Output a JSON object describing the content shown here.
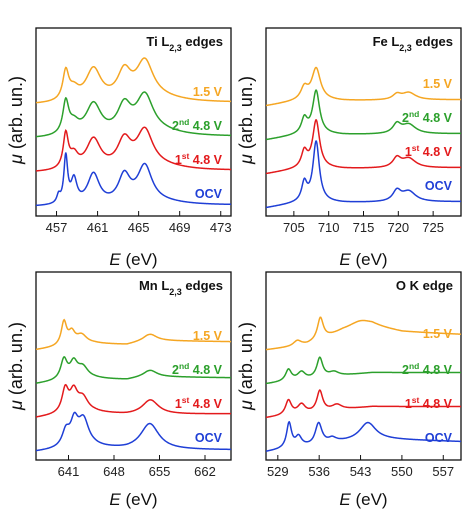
{
  "y_axis_label": "μ (arb. un.)",
  "charts": [
    {
      "type": "line",
      "title": "Ti L2,3 edges",
      "title_parts": {
        "base": "Ti L",
        "sub": "2,3",
        "rest": " edges"
      },
      "xlabel": "E (eV)",
      "xlim": [
        455,
        474
      ],
      "xticks": [
        "457",
        "461",
        "465",
        "469",
        "473"
      ],
      "series": [
        {
          "label": {
            "pre": "1.5 V",
            "sup": "",
            "post": ""
          },
          "color": "#f5a623",
          "offset": 3,
          "base": [
            [
              455,
              0.02
            ],
            [
              474,
              0.06
            ]
          ],
          "peaks": [
            [
              457.9,
              0.55,
              0.35
            ],
            [
              458.7,
              0.2,
              0.6
            ],
            [
              460.6,
              0.62,
              0.9
            ],
            [
              463.6,
              0.52,
              0.8
            ],
            [
              465.6,
              0.72,
              1.0
            ],
            [
              467,
              0.08,
              3
            ]
          ]
        },
        {
          "label": {
            "pre": "2",
            "sup": "nd",
            "post": " 4.8 V"
          },
          "color": "#2ca02c",
          "offset": 2,
          "base": [
            [
              455,
              0.02
            ],
            [
              474,
              0.06
            ]
          ],
          "peaks": [
            [
              457.9,
              0.62,
              0.35
            ],
            [
              458.7,
              0.2,
              0.6
            ],
            [
              460.6,
              0.6,
              0.9
            ],
            [
              463.6,
              0.52,
              0.8
            ],
            [
              465.6,
              0.72,
              1.0
            ],
            [
              467,
              0.08,
              3
            ]
          ]
        },
        {
          "label": {
            "pre": "1",
            "sup": "st",
            "post": " 4.8 V"
          },
          "color": "#e31a1c",
          "offset": 1,
          "base": [
            [
              455,
              0.02
            ],
            [
              474,
              0.06
            ]
          ],
          "peaks": [
            [
              457.9,
              0.66,
              0.3
            ],
            [
              458.7,
              0.25,
              0.5
            ],
            [
              460.6,
              0.58,
              0.85
            ],
            [
              463.6,
              0.52,
              0.8
            ],
            [
              465.6,
              0.7,
              0.95
            ],
            [
              467,
              0.08,
              3
            ]
          ]
        },
        {
          "label": {
            "pre": "OCV",
            "sup": "",
            "post": ""
          },
          "color": "#1f3fd6",
          "offset": 0,
          "base": [
            [
              455,
              0.02
            ],
            [
              474,
              0.05
            ]
          ],
          "peaks": [
            [
              457.2,
              0.15,
              0.2
            ],
            [
              457.9,
              0.9,
              0.22
            ],
            [
              458.7,
              0.45,
              0.35
            ],
            [
              460.6,
              0.58,
              0.7
            ],
            [
              463.6,
              0.52,
              0.7
            ],
            [
              465.6,
              0.7,
              0.85
            ],
            [
              467,
              0.06,
              3
            ]
          ]
        }
      ]
    },
    {
      "type": "line",
      "title": "Fe L2,3 edges",
      "title_parts": {
        "base": "Fe L",
        "sub": "2,3",
        "rest": " edges"
      },
      "xlabel": "E (eV)",
      "xlim": [
        701,
        729
      ],
      "xticks": [
        "705",
        "710",
        "715",
        "720",
        "725"
      ],
      "series": [
        {
          "label": {
            "pre": "1.5 V",
            "sup": "",
            "post": ""
          },
          "color": "#f5a623",
          "offset": 3,
          "base": [
            [
              701,
              0.0
            ],
            [
              707,
              0.12
            ],
            [
              712,
              0.1
            ],
            [
              729,
              0.12
            ]
          ],
          "peaks": [
            [
              706.5,
              0.22,
              0.6
            ],
            [
              708.2,
              0.6,
              0.75
            ],
            [
              719.8,
              0.1,
              0.7
            ],
            [
              721.5,
              0.14,
              1.2
            ]
          ]
        },
        {
          "label": {
            "pre": "2",
            "sup": "nd",
            "post": " 4.8 V"
          },
          "color": "#2ca02c",
          "offset": 2,
          "base": [
            [
              701,
              0.0
            ],
            [
              707,
              0.12
            ],
            [
              712,
              0.1
            ],
            [
              729,
              0.12
            ]
          ],
          "peaks": [
            [
              706.5,
              0.28,
              0.5
            ],
            [
              708.2,
              0.82,
              0.6
            ],
            [
              719.8,
              0.18,
              0.7
            ],
            [
              721.5,
              0.18,
              1.2
            ]
          ]
        },
        {
          "label": {
            "pre": "1",
            "sup": "st",
            "post": " 4.8 V"
          },
          "color": "#e31a1c",
          "offset": 1,
          "base": [
            [
              701,
              0.0
            ],
            [
              707,
              0.12
            ],
            [
              712,
              0.1
            ],
            [
              729,
              0.12
            ]
          ],
          "peaks": [
            [
              706.5,
              0.3,
              0.5
            ],
            [
              708.2,
              0.9,
              0.6
            ],
            [
              719.8,
              0.18,
              0.7
            ],
            [
              721.5,
              0.18,
              1.2
            ]
          ]
        },
        {
          "label": {
            "pre": "OCV",
            "sup": "",
            "post": ""
          },
          "color": "#1f3fd6",
          "offset": 0,
          "base": [
            [
              701,
              0.0
            ],
            [
              707,
              0.12
            ],
            [
              712,
              0.1
            ],
            [
              729,
              0.12
            ]
          ],
          "peaks": [
            [
              706.5,
              0.35,
              0.45
            ],
            [
              708.2,
              1.15,
              0.55
            ],
            [
              719.8,
              0.2,
              0.7
            ],
            [
              721.5,
              0.2,
              1.2
            ]
          ]
        }
      ]
    },
    {
      "type": "line",
      "title": "Mn L2,3 edges",
      "title_parts": {
        "base": "Mn L",
        "sub": "2,3",
        "rest": " edges"
      },
      "xlabel": "E (eV)",
      "xlim": [
        636,
        666
      ],
      "xticks": [
        "641",
        "648",
        "655",
        "662"
      ],
      "series": [
        {
          "label": {
            "pre": "1.5 V",
            "sup": "",
            "post": ""
          },
          "color": "#f5a623",
          "offset": 3,
          "base": [
            [
              636,
              0.0
            ],
            [
              640,
              0.06
            ],
            [
              645,
              0.12
            ],
            [
              650,
              0.1
            ],
            [
              653,
              0.18
            ],
            [
              666,
              0.16
            ]
          ],
          "peaks": [
            [
              640.3,
              0.45,
              0.5
            ],
            [
              641.5,
              0.22,
              0.6
            ],
            [
              643,
              0.18,
              1.0
            ],
            [
              653.6,
              0.12,
              1.2
            ]
          ]
        },
        {
          "label": {
            "pre": "2",
            "sup": "nd",
            "post": " 4.8 V"
          },
          "color": "#2ca02c",
          "offset": 2,
          "base": [
            [
              636,
              0.0
            ],
            [
              640,
              0.06
            ],
            [
              645,
              0.1
            ],
            [
              650,
              0.08
            ],
            [
              653,
              0.14
            ],
            [
              666,
              0.12
            ]
          ],
          "peaks": [
            [
              640.3,
              0.38,
              0.6
            ],
            [
              641.8,
              0.3,
              0.7
            ],
            [
              643.2,
              0.22,
              1.0
            ],
            [
              653.6,
              0.12,
              1.2
            ]
          ]
        },
        {
          "label": {
            "pre": "1",
            "sup": "st",
            "post": " 4.8 V"
          },
          "color": "#e31a1c",
          "offset": 1,
          "base": [
            [
              636,
              0.0
            ],
            [
              640,
              0.06
            ],
            [
              645,
              0.1
            ],
            [
              650,
              0.06
            ],
            [
              666,
              0.08
            ]
          ],
          "peaks": [
            [
              640.5,
              0.45,
              0.6
            ],
            [
              641.8,
              0.38,
              0.7
            ],
            [
              643.2,
              0.28,
              1.0
            ],
            [
              653.6,
              0.28,
              1.5
            ]
          ]
        },
        {
          "label": {
            "pre": "OCV",
            "sup": "",
            "post": ""
          },
          "color": "#1f3fd6",
          "offset": 0,
          "base": [
            [
              636,
              0.0
            ],
            [
              640,
              0.04
            ],
            [
              645,
              0.08
            ],
            [
              650,
              0.04
            ],
            [
              666,
              0.04
            ]
          ],
          "peaks": [
            [
              640.6,
              0.3,
              0.7
            ],
            [
              641.9,
              0.45,
              0.7
            ],
            [
              643.3,
              0.52,
              1.0
            ],
            [
              653.5,
              0.5,
              1.7
            ]
          ]
        }
      ]
    },
    {
      "type": "line",
      "title": "O K edge",
      "title_parts": {
        "base": "O K edge",
        "sub": "",
        "rest": ""
      },
      "xlabel": "E (eV)",
      "xlim": [
        527,
        560
      ],
      "xticks": [
        "529",
        "536",
        "543",
        "550",
        "557"
      ],
      "series": [
        {
          "label": {
            "pre": "1.5 V",
            "sup": "",
            "post": ""
          },
          "color": "#f5a623",
          "offset": 3,
          "base": [
            [
              527,
              0.0
            ],
            [
              531,
              0.05
            ],
            [
              534,
              0.1
            ],
            [
              536,
              0.18
            ],
            [
              540,
              0.35
            ],
            [
              545,
              0.45
            ],
            [
              550,
              0.35
            ],
            [
              560,
              0.3
            ]
          ],
          "peaks": [
            [
              532.3,
              0.1,
              0.8
            ],
            [
              536.2,
              0.42,
              0.6
            ],
            [
              543,
              0.15,
              2.5
            ]
          ]
        },
        {
          "label": {
            "pre": "2",
            "sup": "nd",
            "post": " 4.8 V"
          },
          "color": "#2ca02c",
          "offset": 2,
          "base": [
            [
              527,
              0.0
            ],
            [
              531,
              0.05
            ],
            [
              534,
              0.08
            ],
            [
              538,
              0.14
            ],
            [
              545,
              0.22
            ],
            [
              560,
              0.22
            ]
          ],
          "peaks": [
            [
              530.8,
              0.22,
              0.6
            ],
            [
              533,
              0.15,
              0.8
            ],
            [
              536.1,
              0.38,
              0.6
            ],
            [
              538.5,
              0.08,
              1.0
            ]
          ]
        },
        {
          "label": {
            "pre": "1",
            "sup": "st",
            "post": " 4.8 V"
          },
          "color": "#e31a1c",
          "offset": 1,
          "base": [
            [
              527,
              0.0
            ],
            [
              531,
              0.05
            ],
            [
              534,
              0.08
            ],
            [
              538,
              0.14
            ],
            [
              545,
              0.22
            ],
            [
              560,
              0.22
            ]
          ],
          "peaks": [
            [
              530.8,
              0.28,
              0.6
            ],
            [
              533,
              0.18,
              0.8
            ],
            [
              536.1,
              0.4,
              0.6
            ],
            [
              539,
              0.1,
              1.0
            ]
          ]
        },
        {
          "label": {
            "pre": "OCV",
            "sup": "",
            "post": ""
          },
          "color": "#1f3fd6",
          "offset": 0,
          "base": [
            [
              527,
              0.0
            ],
            [
              530,
              0.05
            ],
            [
              533,
              0.1
            ],
            [
              535,
              0.1
            ],
            [
              539,
              0.18
            ],
            [
              545,
              0.25
            ],
            [
              560,
              0.2
            ]
          ],
          "peaks": [
            [
              530.9,
              0.48,
              0.5
            ],
            [
              532.5,
              0.18,
              0.6
            ],
            [
              535.9,
              0.42,
              0.7
            ],
            [
              538.2,
              0.08,
              0.8
            ],
            [
              544.2,
              0.32,
              1.6
            ]
          ]
        }
      ]
    }
  ]
}
